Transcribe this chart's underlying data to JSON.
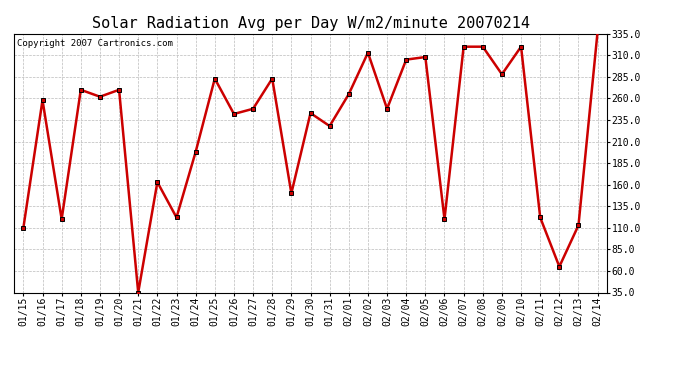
{
  "title": "Solar Radiation Avg per Day W/m2/minute 20070214",
  "copyright": "Copyright 2007 Cartronics.com",
  "dates": [
    "01/15",
    "01/16",
    "01/17",
    "01/18",
    "01/19",
    "01/20",
    "01/21",
    "01/22",
    "01/23",
    "01/24",
    "01/25",
    "01/26",
    "01/27",
    "01/28",
    "01/29",
    "01/30",
    "01/31",
    "02/01",
    "02/02",
    "02/03",
    "02/04",
    "02/05",
    "02/06",
    "02/07",
    "02/08",
    "02/09",
    "02/10",
    "02/11",
    "02/12",
    "02/13",
    "02/14"
  ],
  "values": [
    110,
    258,
    120,
    270,
    262,
    270,
    35,
    163,
    122,
    198,
    283,
    242,
    248,
    283,
    150,
    243,
    228,
    265,
    313,
    248,
    305,
    308,
    120,
    320,
    320,
    288,
    320,
    122,
    65,
    113,
    338
  ],
  "line_color": "#cc0000",
  "marker_color": "#000000",
  "bg_color": "#ffffff",
  "plot_bg_color": "#ffffff",
  "grid_color": "#bbbbbb",
  "ylim": [
    35.0,
    335.0
  ],
  "yticks": [
    35.0,
    60.0,
    85.0,
    110.0,
    135.0,
    160.0,
    185.0,
    210.0,
    235.0,
    260.0,
    285.0,
    310.0,
    335.0
  ],
  "title_fontsize": 11,
  "copyright_fontsize": 6.5,
  "tick_fontsize": 7,
  "figwidth": 6.9,
  "figheight": 3.75,
  "dpi": 100
}
